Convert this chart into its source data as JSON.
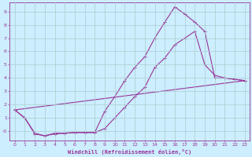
{
  "xlabel": "Windchill (Refroidissement éolien,°C)",
  "background_color": "#cceeff",
  "grid_color": "#aacccc",
  "line_color": "#993399",
  "xlim": [
    -0.5,
    23.5
  ],
  "ylim": [
    -0.7,
    9.7
  ],
  "xticks": [
    0,
    1,
    2,
    3,
    4,
    5,
    6,
    7,
    8,
    9,
    10,
    11,
    12,
    13,
    14,
    15,
    16,
    17,
    18,
    19,
    20,
    21,
    22,
    23
  ],
  "yticks": [
    0,
    1,
    2,
    3,
    4,
    5,
    6,
    7,
    8,
    9
  ],
  "ytick_labels": [
    "-0",
    "1",
    "2",
    "3",
    "4",
    "5",
    "6",
    "7",
    "8",
    "9"
  ],
  "line1_x": [
    0,
    1,
    2,
    3,
    4,
    5,
    6,
    7,
    8,
    9,
    10,
    11,
    12,
    13,
    14,
    15,
    16,
    17,
    18,
    19,
    20,
    21,
    22,
    23
  ],
  "line1_y": [
    1.6,
    1.0,
    -0.2,
    -0.35,
    -0.15,
    -0.15,
    -0.1,
    -0.1,
    -0.1,
    1.5,
    2.6,
    3.8,
    4.8,
    5.6,
    7.0,
    8.2,
    9.35,
    8.8,
    8.2,
    7.5,
    4.0,
    4.0,
    3.9,
    3.8
  ],
  "line2_x": [
    0,
    1,
    2,
    3,
    4,
    5,
    6,
    7,
    8,
    9,
    10,
    11,
    12,
    13,
    14,
    15,
    16,
    17,
    18,
    19,
    20,
    21,
    22,
    23
  ],
  "line2_y": [
    1.6,
    1.0,
    -0.15,
    -0.35,
    -0.2,
    -0.15,
    -0.1,
    -0.1,
    -0.1,
    0.2,
    1.0,
    1.8,
    2.6,
    3.3,
    4.8,
    5.5,
    6.5,
    7.0,
    7.5,
    5.0,
    4.2,
    4.0,
    3.9,
    3.8
  ],
  "line3_x": [
    0,
    23
  ],
  "line3_y": [
    1.6,
    3.8
  ],
  "marker_size": 2.5,
  "linewidth": 0.8
}
